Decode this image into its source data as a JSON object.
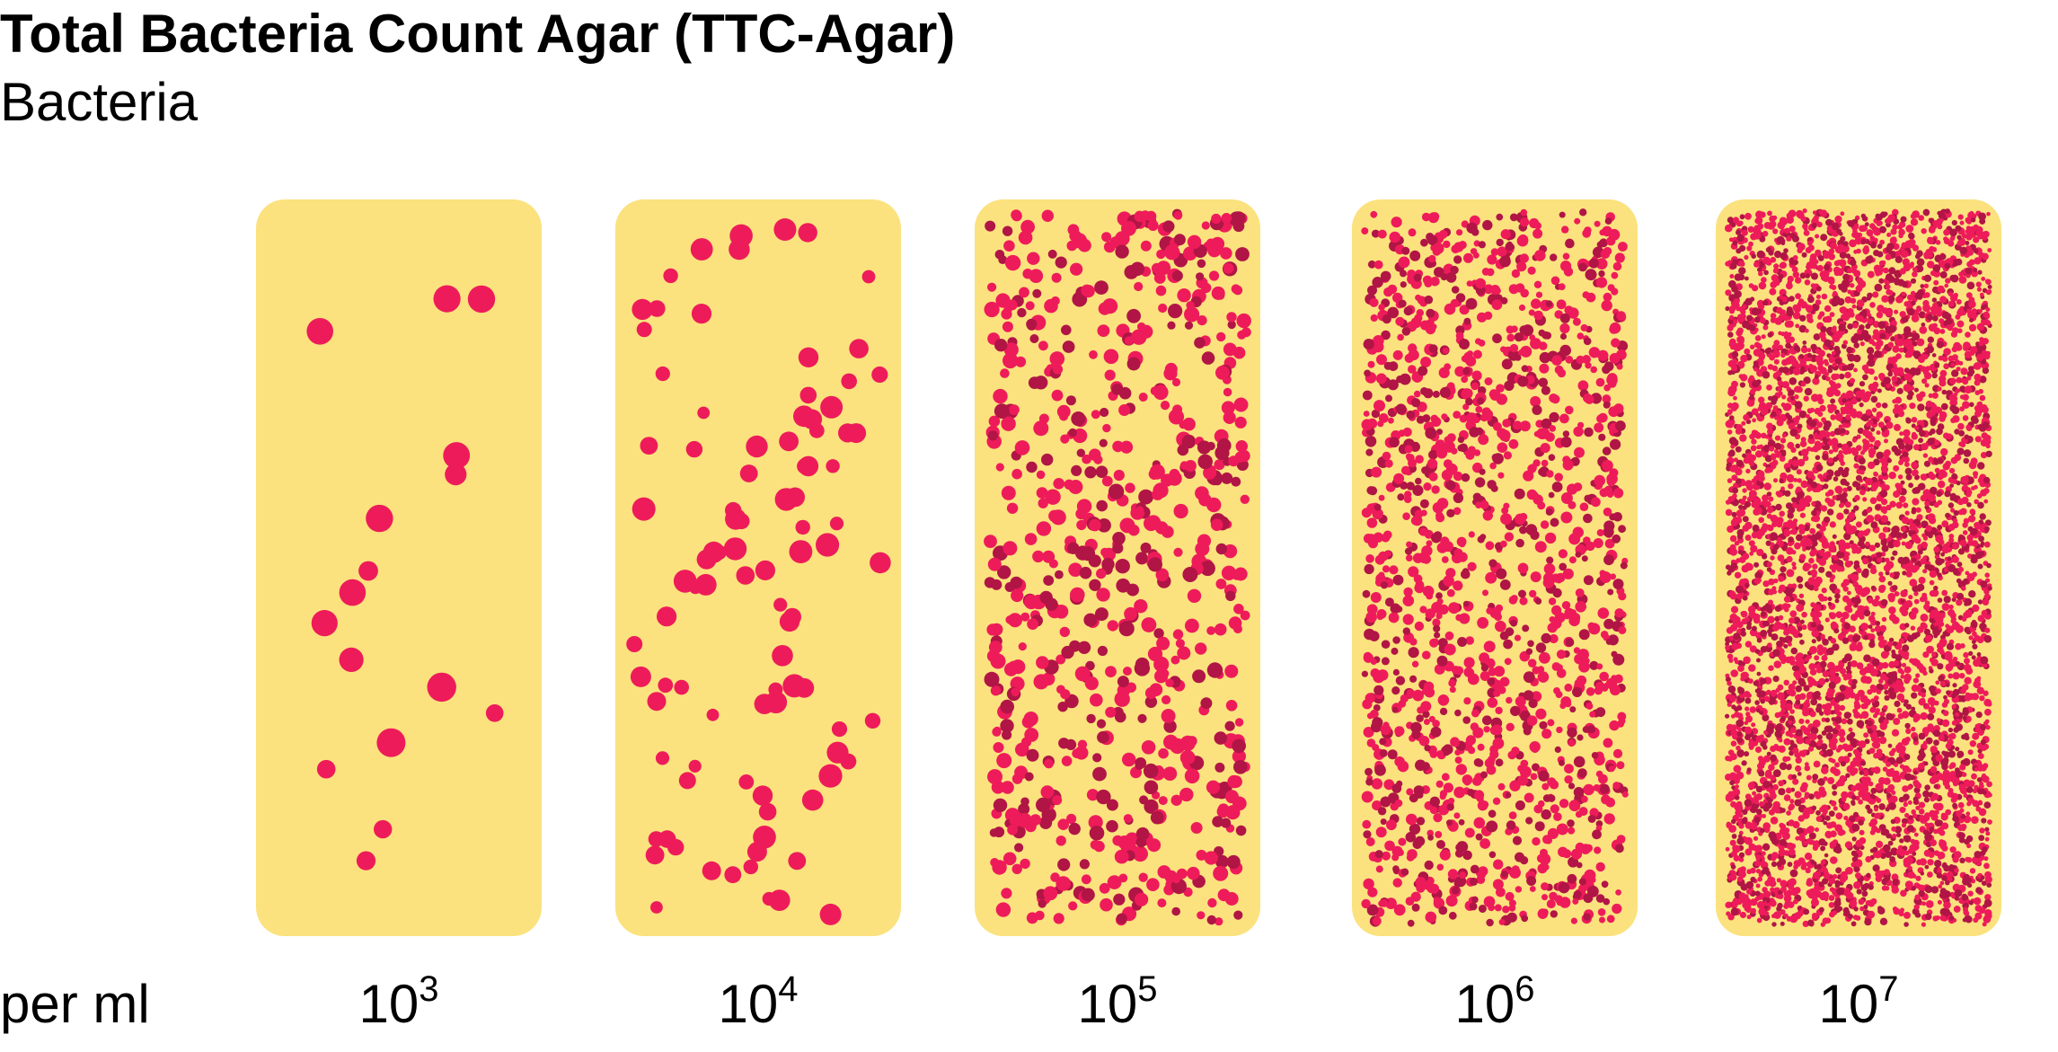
{
  "header": {
    "title": "Total Bacteria Count Agar (TTC-Agar)",
    "subtitle": "Bacteria"
  },
  "footer": {
    "unit_label": "per ml"
  },
  "colors": {
    "agar": "#fbe27e",
    "colony": "#ee1b5a",
    "colony_dark": "#b01545"
  },
  "plates": [
    {
      "base": "10",
      "exponent": "3",
      "colonies": 16
    },
    {
      "base": "10",
      "exponent": "4",
      "colonies": 95
    },
    {
      "base": "10",
      "exponent": "5",
      "colonies": 700
    },
    {
      "base": "10",
      "exponent": "6",
      "colonies": 1500
    },
    {
      "base": "10",
      "exponent": "7",
      "colonies": 5200
    }
  ]
}
